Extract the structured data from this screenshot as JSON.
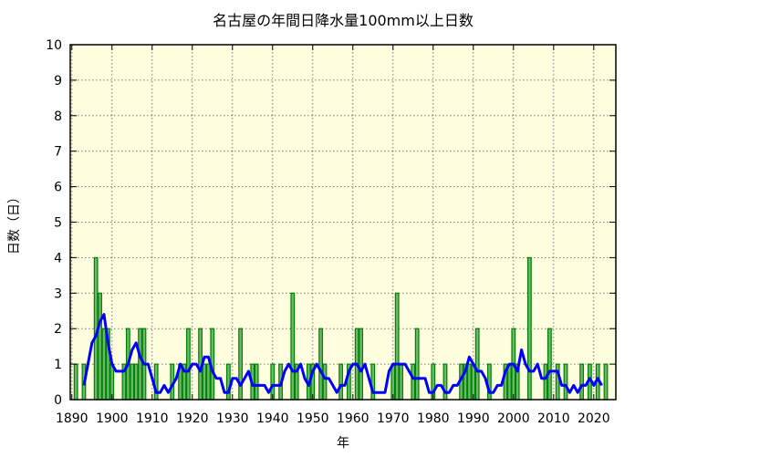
{
  "chart_data": {
    "type": "bar",
    "title": "名古屋の年間日降水量100mm以上日数",
    "xlabel": "年",
    "ylabel": "日数（日）",
    "xlim": [
      1889.6,
      2025.5
    ],
    "ylim": [
      0,
      10
    ],
    "x_ticks": [
      1890,
      1900,
      1910,
      1920,
      1930,
      1940,
      1950,
      1960,
      1970,
      1980,
      1990,
      2000,
      2010,
      2020
    ],
    "y_ticks": [
      0,
      1,
      2,
      3,
      4,
      5,
      6,
      7,
      8,
      9,
      10
    ],
    "grid": true,
    "background_color": "#ffffe0",
    "bar_color": "#6ab86a",
    "bar_edge_color": "#008000",
    "line_color": "#0000ff",
    "bars": {
      "start_year": 1891,
      "values": [
        1,
        0,
        1,
        0,
        0,
        4,
        3,
        2,
        2,
        1,
        0,
        0,
        1,
        2,
        1,
        1,
        2,
        2,
        0,
        0,
        1,
        0,
        0,
        0,
        1,
        0,
        1,
        1,
        2,
        0,
        0,
        2,
        1,
        1,
        2,
        0,
        0,
        0,
        1,
        0,
        0,
        2,
        0,
        0,
        1,
        1,
        0,
        0,
        0,
        1,
        0,
        1,
        0,
        0,
        3,
        1,
        0,
        0,
        1,
        1,
        0,
        2,
        1,
        0,
        0,
        0,
        1,
        0,
        1,
        0,
        2,
        2,
        0,
        0,
        1,
        0,
        0,
        0,
        0,
        1,
        3,
        1,
        0,
        0,
        1,
        2,
        0,
        0,
        0,
        1,
        0,
        0,
        1,
        0,
        0,
        0,
        1,
        1,
        1,
        1,
        2,
        0,
        0,
        1,
        0,
        0,
        0,
        1,
        1,
        2,
        1,
        0,
        0,
        4,
        0,
        0,
        0,
        1,
        2,
        0,
        1,
        0,
        1,
        0,
        0,
        0,
        1,
        0,
        1,
        0,
        1,
        0,
        1,
        0
      ]
    },
    "line": {
      "start_year": 1893,
      "values": [
        0.4,
        1.0,
        1.6,
        1.8,
        2.2,
        2.4,
        1.6,
        1.0,
        0.8,
        0.8,
        0.8,
        1.0,
        1.4,
        1.6,
        1.2,
        1.0,
        1.0,
        0.6,
        0.2,
        0.2,
        0.4,
        0.2,
        0.4,
        0.6,
        1.0,
        0.8,
        0.8,
        1.0,
        1.0,
        0.8,
        1.2,
        1.2,
        0.8,
        0.6,
        0.6,
        0.2,
        0.2,
        0.6,
        0.6,
        0.4,
        0.6,
        0.8,
        0.4,
        0.4,
        0.4,
        0.4,
        0.2,
        0.4,
        0.4,
        0.4,
        0.8,
        1.0,
        0.8,
        0.8,
        1.0,
        0.6,
        0.4,
        0.8,
        1.0,
        0.8,
        0.6,
        0.6,
        0.4,
        0.2,
        0.4,
        0.4,
        0.8,
        1.0,
        1.0,
        0.8,
        1.0,
        0.6,
        0.2,
        0.2,
        0.2,
        0.2,
        0.8,
        1.0,
        1.0,
        1.0,
        1.0,
        0.8,
        0.6,
        0.6,
        0.6,
        0.6,
        0.2,
        0.2,
        0.4,
        0.4,
        0.2,
        0.2,
        0.4,
        0.4,
        0.6,
        0.8,
        1.2,
        1.0,
        0.8,
        0.8,
        0.6,
        0.2,
        0.2,
        0.4,
        0.4,
        0.8,
        1.0,
        1.0,
        0.8,
        1.4,
        1.0,
        0.8,
        0.8,
        1.0,
        0.6,
        0.6,
        0.8,
        0.8,
        0.8,
        0.4,
        0.4,
        0.2,
        0.4,
        0.2,
        0.4,
        0.4,
        0.6,
        0.4,
        0.6,
        0.4
      ]
    }
  }
}
